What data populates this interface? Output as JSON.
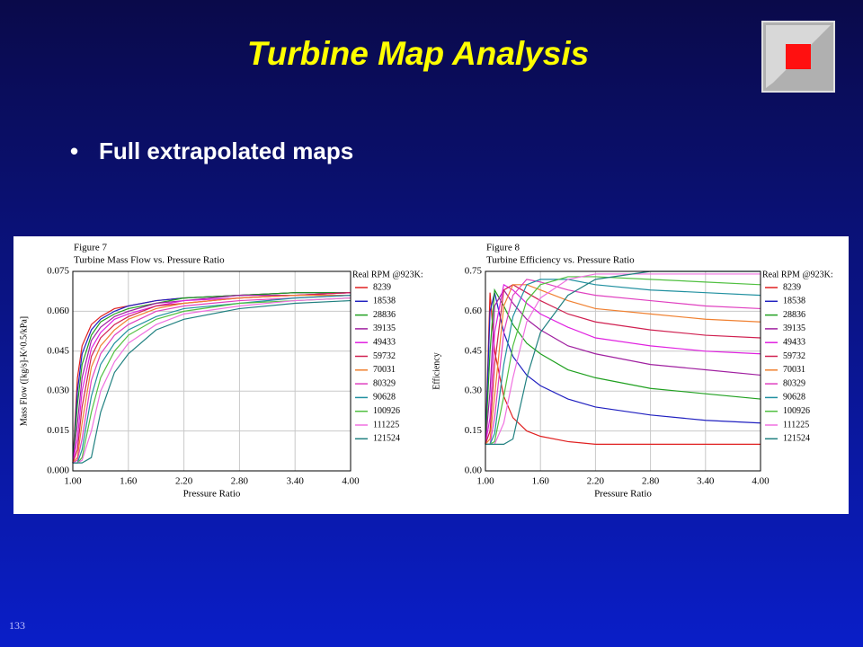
{
  "slide": {
    "title": "Turbine Map Analysis",
    "bullet": "Full extrapolated maps",
    "page_number": "133"
  },
  "chart_data": [
    {
      "type": "line",
      "title": "Figure 7",
      "subtitle": "Turbine Mass Flow vs. Pressure Ratio",
      "xlabel": "Pressure Ratio",
      "ylabel": "Mass Flow ([kg/s]-K^0.5/kPa]",
      "legend_title": "Real RPM @923K:",
      "grid": true,
      "xlim": [
        1.0,
        4.0
      ],
      "ylim": [
        0,
        0.075
      ],
      "xticks": [
        {
          "value": 1.0,
          "label": "1.00"
        },
        {
          "value": 1.6,
          "label": "1.60"
        },
        {
          "value": 2.2,
          "label": "2.20"
        },
        {
          "value": 2.8,
          "label": "2.80"
        },
        {
          "value": 3.4,
          "label": "3.40"
        },
        {
          "value": 4.0,
          "label": "4.00"
        }
      ],
      "yticks": [
        {
          "value": 0,
          "label": "0.000"
        },
        {
          "value": 0.015,
          "label": "0.015"
        },
        {
          "value": 0.03,
          "label": "0.030"
        },
        {
          "value": 0.045,
          "label": "0.045"
        },
        {
          "value": 0.06,
          "label": "0.060"
        },
        {
          "value": 0.075,
          "label": "0.075"
        }
      ],
      "x": [
        1.0,
        1.05,
        1.1,
        1.2,
        1.3,
        1.45,
        1.6,
        1.9,
        2.2,
        2.8,
        3.4,
        4.0
      ],
      "series": [
        {
          "name": "8239",
          "color": "#e02020",
          "values": [
            0.003,
            0.035,
            0.047,
            0.055,
            0.058,
            0.061,
            0.062,
            0.064,
            0.065,
            0.066,
            0.067,
            0.067
          ]
        },
        {
          "name": "18538",
          "color": "#2020c0",
          "values": [
            0.003,
            0.03,
            0.044,
            0.053,
            0.057,
            0.06,
            0.062,
            0.064,
            0.065,
            0.066,
            0.067,
            0.067
          ]
        },
        {
          "name": "28836",
          "color": "#20a020",
          "values": [
            0.003,
            0.025,
            0.04,
            0.051,
            0.056,
            0.059,
            0.061,
            0.063,
            0.065,
            0.066,
            0.067,
            0.067
          ]
        },
        {
          "name": "39135",
          "color": "#a020a0",
          "values": [
            0.003,
            0.018,
            0.035,
            0.049,
            0.054,
            0.058,
            0.06,
            0.063,
            0.064,
            0.066,
            0.066,
            0.067
          ]
        },
        {
          "name": "49433",
          "color": "#e020e0",
          "values": [
            0.003,
            0.012,
            0.03,
            0.046,
            0.052,
            0.057,
            0.059,
            0.062,
            0.064,
            0.065,
            0.066,
            0.067
          ]
        },
        {
          "name": "59732",
          "color": "#d02050",
          "values": [
            0.003,
            0.008,
            0.024,
            0.043,
            0.05,
            0.055,
            0.058,
            0.062,
            0.063,
            0.065,
            0.066,
            0.067
          ]
        },
        {
          "name": "70031",
          "color": "#f08030",
          "values": [
            0.003,
            0.005,
            0.018,
            0.039,
            0.047,
            0.053,
            0.057,
            0.061,
            0.063,
            0.065,
            0.066,
            0.066
          ]
        },
        {
          "name": "80329",
          "color": "#e040c0",
          "values": [
            0.003,
            0.004,
            0.012,
            0.034,
            0.044,
            0.051,
            0.055,
            0.06,
            0.062,
            0.064,
            0.065,
            0.066
          ]
        },
        {
          "name": "90628",
          "color": "#2090a0",
          "values": [
            0.003,
            0.003,
            0.008,
            0.028,
            0.04,
            0.048,
            0.053,
            0.058,
            0.061,
            0.063,
            0.065,
            0.066
          ]
        },
        {
          "name": "100926",
          "color": "#50c040",
          "values": [
            0.003,
            0.003,
            0.005,
            0.022,
            0.035,
            0.045,
            0.051,
            0.057,
            0.06,
            0.063,
            0.064,
            0.065
          ]
        },
        {
          "name": "111225",
          "color": "#f070e0",
          "values": [
            0.003,
            0.003,
            0.004,
            0.015,
            0.03,
            0.041,
            0.048,
            0.055,
            0.059,
            0.062,
            0.064,
            0.065
          ]
        },
        {
          "name": "121524",
          "color": "#208080",
          "values": [
            0.003,
            0.003,
            0.003,
            0.005,
            0.022,
            0.037,
            0.044,
            0.053,
            0.057,
            0.061,
            0.063,
            0.064
          ]
        }
      ]
    },
    {
      "type": "line",
      "title": "Figure 8",
      "subtitle": "Turbine Efficiency vs. Pressure Ratio",
      "xlabel": "Pressure Ratio",
      "ylabel": "Efficiency",
      "legend_title": "Real RPM @923K:",
      "grid": true,
      "xlim": [
        1.0,
        4.0
      ],
      "ylim": [
        0,
        0.75
      ],
      "xticks": [
        {
          "value": 1.0,
          "label": "1.00"
        },
        {
          "value": 1.6,
          "label": "1.60"
        },
        {
          "value": 2.2,
          "label": "2.20"
        },
        {
          "value": 2.8,
          "label": "2.80"
        },
        {
          "value": 3.4,
          "label": "3.40"
        },
        {
          "value": 4.0,
          "label": "4.00"
        }
      ],
      "yticks": [
        {
          "value": 0,
          "label": "0.00"
        },
        {
          "value": 0.15,
          "label": "0.15"
        },
        {
          "value": 0.3,
          "label": "0.30"
        },
        {
          "value": 0.45,
          "label": "0.45"
        },
        {
          "value": 0.6,
          "label": "0.60"
        },
        {
          "value": 0.75,
          "label": "0.75"
        }
      ],
      "x": [
        1.0,
        1.05,
        1.1,
        1.2,
        1.3,
        1.45,
        1.6,
        1.9,
        2.2,
        2.8,
        3.4,
        4.0
      ],
      "series": [
        {
          "name": "8239",
          "color": "#e02020",
          "values": [
            0.1,
            0.67,
            0.45,
            0.28,
            0.2,
            0.15,
            0.13,
            0.11,
            0.1,
            0.1,
            0.1,
            0.1
          ]
        },
        {
          "name": "18538",
          "color": "#2020c0",
          "values": [
            0.1,
            0.6,
            0.67,
            0.52,
            0.43,
            0.36,
            0.32,
            0.27,
            0.24,
            0.21,
            0.19,
            0.18
          ]
        },
        {
          "name": "28836",
          "color": "#20a020",
          "values": [
            0.1,
            0.45,
            0.68,
            0.62,
            0.55,
            0.48,
            0.44,
            0.38,
            0.35,
            0.31,
            0.29,
            0.27
          ]
        },
        {
          "name": "39135",
          "color": "#a020a0",
          "values": [
            0.1,
            0.3,
            0.62,
            0.68,
            0.63,
            0.57,
            0.53,
            0.47,
            0.44,
            0.4,
            0.38,
            0.36
          ]
        },
        {
          "name": "49433",
          "color": "#e020e0",
          "values": [
            0.1,
            0.2,
            0.52,
            0.7,
            0.68,
            0.63,
            0.59,
            0.54,
            0.5,
            0.47,
            0.45,
            0.44
          ]
        },
        {
          "name": "59732",
          "color": "#d02050",
          "values": [
            0.1,
            0.15,
            0.4,
            0.68,
            0.7,
            0.67,
            0.64,
            0.59,
            0.56,
            0.53,
            0.51,
            0.5
          ]
        },
        {
          "name": "70031",
          "color": "#f08030",
          "values": [
            0.1,
            0.12,
            0.28,
            0.62,
            0.7,
            0.7,
            0.68,
            0.64,
            0.61,
            0.59,
            0.57,
            0.56
          ]
        },
        {
          "name": "80329",
          "color": "#e040c0",
          "values": [
            0.1,
            0.1,
            0.2,
            0.52,
            0.66,
            0.72,
            0.71,
            0.68,
            0.66,
            0.64,
            0.62,
            0.61
          ]
        },
        {
          "name": "90628",
          "color": "#2090a0",
          "values": [
            0.1,
            0.1,
            0.14,
            0.4,
            0.58,
            0.7,
            0.72,
            0.72,
            0.7,
            0.68,
            0.67,
            0.66
          ]
        },
        {
          "name": "100926",
          "color": "#50c040",
          "values": [
            0.1,
            0.1,
            0.11,
            0.28,
            0.47,
            0.64,
            0.7,
            0.73,
            0.73,
            0.72,
            0.71,
            0.7
          ]
        },
        {
          "name": "111225",
          "color": "#f070e0",
          "values": [
            0.1,
            0.1,
            0.1,
            0.18,
            0.35,
            0.56,
            0.65,
            0.72,
            0.74,
            0.74,
            0.74,
            0.74
          ]
        },
        {
          "name": "121524",
          "color": "#208080",
          "values": [
            0.1,
            0.1,
            0.1,
            0.1,
            0.12,
            0.35,
            0.52,
            0.66,
            0.72,
            0.75,
            0.75,
            0.75
          ]
        }
      ]
    }
  ]
}
